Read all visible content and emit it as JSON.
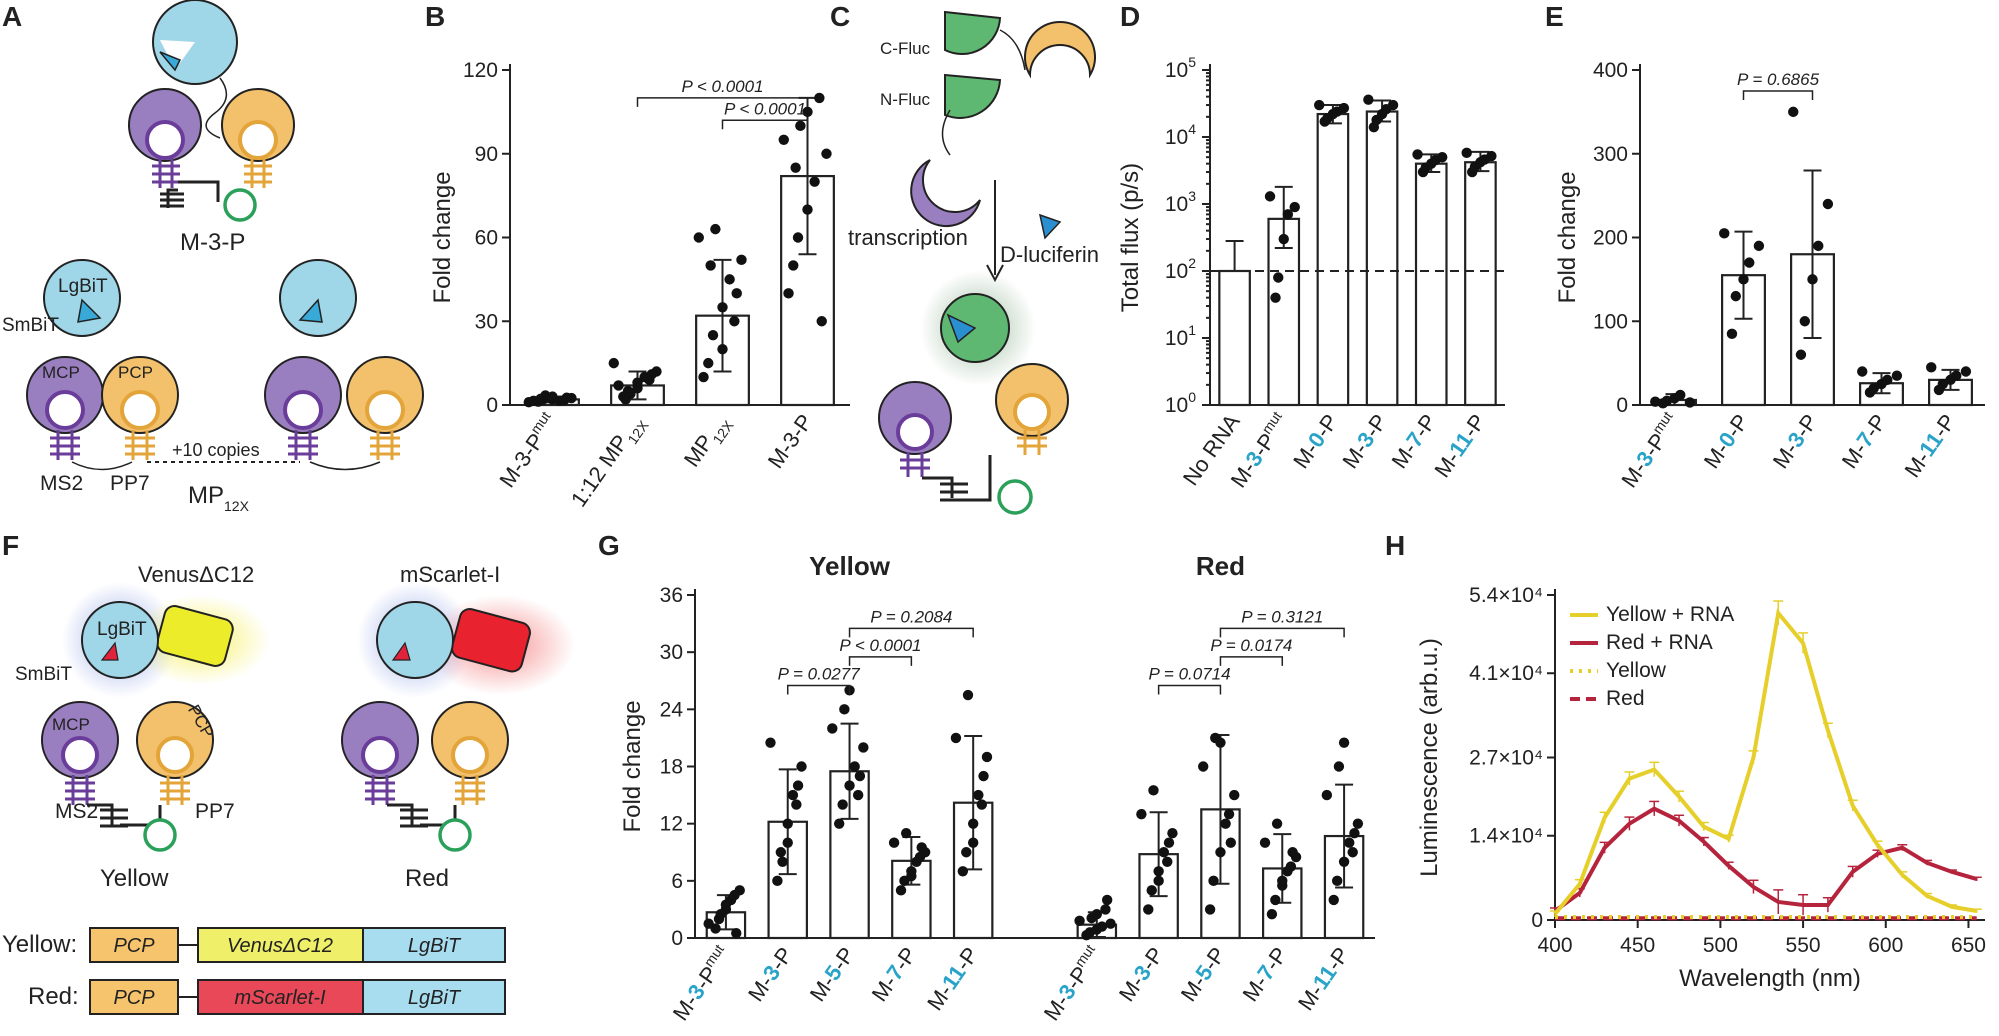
{
  "panels": {
    "A": {
      "label": "A",
      "construct_top": "M-3-P",
      "lgbit": "LgBiT",
      "smbit": "SmBiT",
      "mcp": "MCP",
      "pcp": "PCP",
      "ms2": "MS2",
      "pp7": "PP7",
      "copies": "+10 copies",
      "mp_main": "MP",
      "mp_sub": "12X"
    },
    "C": {
      "label": "C",
      "cfluc": "C-Fluc",
      "nfluc": "N-Fluc",
      "transcription": "transcription",
      "luciferin": "D-luciferin"
    },
    "F": {
      "label": "F",
      "venus_title": "VenusΔC12",
      "scarlet_title": "mScarlet-I",
      "lgbit": "LgBiT",
      "smbit": "SmBiT",
      "mcp": "MCP",
      "pcp": "PCP",
      "ms2": "MS2",
      "pp7": "PP7",
      "yellow_name": "Yellow",
      "red_name": "Red",
      "fusion_yellow": {
        "row_label": "Yellow:",
        "segments": [
          "PCP",
          "VenusΔC12",
          "LgBiT"
        ]
      },
      "fusion_red": {
        "row_label": "Red:",
        "segments": [
          "PCP",
          "mScarlet-I",
          "LgBiT"
        ]
      }
    }
  },
  "chart_data": [
    {
      "panel": "B",
      "type": "bar",
      "ylabel": "Fold change",
      "ylim": [
        0,
        120
      ],
      "yticks": [
        0,
        30,
        60,
        90,
        120
      ],
      "categories": [
        {
          "parts": [
            [
              "M-3-P",
              ""
            ],
            [
              "mut",
              "sup"
            ]
          ]
        },
        {
          "parts": [
            [
              "1:12 MP",
              ""
            ],
            [
              "12X",
              "sub"
            ]
          ]
        },
        {
          "parts": [
            [
              "MP",
              ""
            ],
            [
              "12X",
              "sub"
            ]
          ]
        },
        {
          "parts": [
            [
              "M-3-P",
              ""
            ]
          ]
        }
      ],
      "values": [
        2,
        7,
        32,
        82
      ],
      "sd": [
        1,
        5,
        20,
        28
      ],
      "points": [
        [
          1.2,
          2,
          3,
          1.5,
          2.5,
          1,
          3.4,
          2,
          1.8,
          2.6,
          1.5,
          2.2
        ],
        [
          3,
          5,
          8,
          10,
          12,
          15,
          4,
          6,
          9,
          11,
          7,
          2
        ],
        [
          15,
          25,
          35,
          45,
          52,
          60,
          63,
          20,
          30,
          40,
          10,
          50
        ],
        [
          50,
          60,
          70,
          80,
          90,
          95,
          100,
          105,
          110,
          30,
          40,
          85
        ]
      ],
      "annotations": [
        {
          "text": "P < 0.0001",
          "from": 1,
          "to": 3,
          "level": 110
        },
        {
          "text": "P < 0.0001",
          "from": 2,
          "to": 3,
          "level": 102
        }
      ]
    },
    {
      "panel": "D",
      "type": "bar",
      "yscale": "log",
      "ylabel": "Total flux (p/s)",
      "ylim": [
        1,
        100000
      ],
      "yticks": [
        {
          "base": "10",
          "exp": "0"
        },
        {
          "base": "10",
          "exp": "1"
        },
        {
          "base": "10",
          "exp": "2"
        },
        {
          "base": "10",
          "exp": "3"
        },
        {
          "base": "10",
          "exp": "4"
        },
        {
          "base": "10",
          "exp": "5"
        }
      ],
      "reference_line": 100,
      "categories": [
        {
          "parts": [
            [
              "No RNA",
              ""
            ]
          ]
        },
        {
          "parts": [
            [
              "M-",
              ""
            ],
            [
              "3",
              "hl"
            ],
            [
              "-P",
              ""
            ],
            [
              "mut",
              "sup"
            ]
          ]
        },
        {
          "parts": [
            [
              "M-",
              ""
            ],
            [
              "0",
              "hl"
            ],
            [
              "-P",
              ""
            ]
          ]
        },
        {
          "parts": [
            [
              "M-",
              ""
            ],
            [
              "3",
              "hl"
            ],
            [
              "-P",
              ""
            ]
          ]
        },
        {
          "parts": [
            [
              "M-",
              ""
            ],
            [
              "7",
              "hl"
            ],
            [
              "-P",
              ""
            ]
          ]
        },
        {
          "parts": [
            [
              "M-",
              ""
            ],
            [
              "11",
              "hl"
            ],
            [
              "-P",
              ""
            ]
          ]
        }
      ],
      "values": [
        100,
        600,
        22000,
        24000,
        4000,
        4200
      ],
      "err_low": [
        100,
        220,
        16000,
        17000,
        3000,
        3100
      ],
      "err_high": [
        280,
        1800,
        30000,
        35000,
        5500,
        6000
      ],
      "points": [
        [],
        [
          40,
          80,
          300,
          700,
          900,
          1300
        ],
        [
          17000,
          19000,
          22000,
          24000,
          27000,
          30000
        ],
        [
          14000,
          18000,
          22000,
          26000,
          30000,
          36000
        ],
        [
          3000,
          3500,
          4000,
          4500,
          5000,
          5500
        ],
        [
          3000,
          3600,
          4200,
          4600,
          5200,
          5800
        ]
      ]
    },
    {
      "panel": "E",
      "type": "bar",
      "ylabel": "Fold change",
      "ylim": [
        0,
        400
      ],
      "yticks": [
        0,
        100,
        200,
        300,
        400
      ],
      "categories": [
        {
          "parts": [
            [
              "M-",
              ""
            ],
            [
              "3",
              "hl"
            ],
            [
              "-P",
              ""
            ],
            [
              "mut",
              "sup"
            ]
          ]
        },
        {
          "parts": [
            [
              "M-",
              ""
            ],
            [
              "0",
              "hl"
            ],
            [
              "-P",
              ""
            ]
          ]
        },
        {
          "parts": [
            [
              "M-",
              ""
            ],
            [
              "3",
              "hl"
            ],
            [
              "-P",
              ""
            ]
          ]
        },
        {
          "parts": [
            [
              "M-",
              ""
            ],
            [
              "7",
              "hl"
            ],
            [
              "-P",
              ""
            ]
          ]
        },
        {
          "parts": [
            [
              "M-",
              ""
            ],
            [
              "11",
              "hl"
            ],
            [
              "-P",
              ""
            ]
          ]
        }
      ],
      "values": [
        6,
        155,
        180,
        26,
        30
      ],
      "sd": [
        7,
        52,
        100,
        12,
        12
      ],
      "points": [
        [
          2,
          5,
          8,
          12,
          3,
          4
        ],
        [
          85,
          130,
          150,
          170,
          190,
          205
        ],
        [
          60,
          100,
          150,
          190,
          240,
          350
        ],
        [
          15,
          20,
          25,
          30,
          35,
          40
        ],
        [
          18,
          25,
          30,
          35,
          40,
          45
        ]
      ],
      "annotations": [
        {
          "text": "P = 0.6865",
          "from": 1,
          "to": 2,
          "level": 375
        }
      ]
    },
    {
      "panel": "G",
      "type": "bar",
      "ylabel": "Fold change",
      "ylim": [
        0,
        36
      ],
      "yticks": [
        0,
        6,
        12,
        18,
        24,
        30,
        36
      ],
      "groups": [
        {
          "name": "Yellow",
          "color": "#e8d31c"
        },
        {
          "name": "Red",
          "color": "#b5243c"
        }
      ],
      "categories": [
        {
          "parts": [
            [
              "M-",
              ""
            ],
            [
              "3",
              "hl"
            ],
            [
              "-P",
              ""
            ],
            [
              "mut",
              "sup"
            ]
          ]
        },
        {
          "parts": [
            [
              "M-",
              ""
            ],
            [
              "3",
              "hl"
            ],
            [
              "-P",
              ""
            ]
          ]
        },
        {
          "parts": [
            [
              "M-",
              ""
            ],
            [
              "5",
              "hl"
            ],
            [
              "-P",
              ""
            ]
          ]
        },
        {
          "parts": [
            [
              "M-",
              ""
            ],
            [
              "7",
              "hl"
            ],
            [
              "-P",
              ""
            ]
          ]
        },
        {
          "parts": [
            [
              "M-",
              ""
            ],
            [
              "11",
              "hl"
            ],
            [
              "-P",
              ""
            ]
          ]
        },
        {
          "parts": [
            [
              "M-",
              ""
            ],
            [
              "3",
              "hl"
            ],
            [
              "-P",
              ""
            ],
            [
              "mut",
              "sup"
            ]
          ]
        },
        {
          "parts": [
            [
              "M-",
              ""
            ],
            [
              "3",
              "hl"
            ],
            [
              "-P",
              ""
            ]
          ]
        },
        {
          "parts": [
            [
              "M-",
              ""
            ],
            [
              "5",
              "hl"
            ],
            [
              "-P",
              ""
            ]
          ]
        },
        {
          "parts": [
            [
              "M-",
              ""
            ],
            [
              "7",
              "hl"
            ],
            [
              "-P",
              ""
            ]
          ]
        },
        {
          "parts": [
            [
              "M-",
              ""
            ],
            [
              "11",
              "hl"
            ],
            [
              "-P",
              ""
            ]
          ]
        }
      ],
      "values": [
        2.7,
        12.2,
        17.5,
        8.1,
        14.2,
        1.4,
        8.8,
        13.5,
        7.3,
        10.7
      ],
      "sd": [
        1.8,
        5.5,
        5.0,
        2.5,
        7.0,
        1.3,
        4.4,
        7.8,
        3.6,
        5.4
      ],
      "points": [
        [
          1,
          2,
          3,
          4,
          5,
          1.5,
          2.5,
          3.5,
          4.5,
          0.5
        ],
        [
          6,
          9,
          12,
          15,
          18,
          20.5,
          8,
          10,
          14,
          16
        ],
        [
          12,
          14,
          16,
          18,
          20,
          22,
          24,
          26,
          15,
          17
        ],
        [
          5,
          6,
          7,
          8,
          9,
          10,
          11,
          6.5,
          8.5,
          9.5
        ],
        [
          7,
          9,
          12,
          15,
          19,
          21,
          25.5,
          10,
          14,
          17
        ],
        [
          0.3,
          0.6,
          0.9,
          1.2,
          1.5,
          1.8,
          2.1,
          2.5,
          3,
          4
        ],
        [
          3,
          5,
          7,
          9,
          11,
          13,
          15.5,
          6,
          8,
          10
        ],
        [
          3,
          6,
          9,
          12,
          15,
          18,
          21,
          20.5,
          13,
          10
        ],
        [
          2.5,
          4,
          5.5,
          7,
          8.5,
          10,
          12,
          6,
          7.5,
          9
        ],
        [
          4,
          6,
          8,
          10,
          12,
          15,
          18,
          20.5,
          9,
          11
        ]
      ],
      "annotations": [
        {
          "text": "P = 0.0277",
          "from": 1,
          "to": 2,
          "level": 26.5
        },
        {
          "text": "P < 0.0001",
          "from": 2,
          "to": 3,
          "level": 29.5
        },
        {
          "text": "P = 0.2084",
          "from": 2,
          "to": 4,
          "level": 32.5
        },
        {
          "text": "P = 0.0714",
          "from": 6,
          "to": 7,
          "level": 26.5
        },
        {
          "text": "P = 0.0174",
          "from": 7,
          "to": 8,
          "level": 29.5
        },
        {
          "text": "P = 0.3121",
          "from": 7,
          "to": 9,
          "level": 32.5
        }
      ]
    },
    {
      "panel": "H",
      "type": "line",
      "xlabel": "Wavelength (nm)",
      "ylabel": "Luminescence (arb.u.)",
      "xlim": [
        400,
        660
      ],
      "xticks": [
        400,
        450,
        500,
        550,
        600,
        650
      ],
      "ylim": [
        0,
        54000
      ],
      "yticks": [
        {
          "v": 0,
          "label": "0"
        },
        {
          "v": 14000,
          "label": "1.4×10⁴"
        },
        {
          "v": 27000,
          "label": "2.7×10⁴"
        },
        {
          "v": 41000,
          "label": "4.1×10⁴"
        },
        {
          "v": 54000,
          "label": "5.4×10⁴"
        }
      ],
      "x": [
        400,
        415,
        430,
        445,
        460,
        475,
        490,
        505,
        520,
        535,
        550,
        565,
        580,
        595,
        610,
        625,
        640,
        655
      ],
      "series": [
        {
          "name": "Yellow + RNA",
          "color": "#e6cf2a",
          "style": "solid",
          "values": [
            1000,
            6000,
            17000,
            23500,
            25000,
            20500,
            15500,
            13500,
            27000,
            51000,
            46000,
            31500,
            19000,
            12500,
            7500,
            4000,
            2200,
            1500
          ]
        },
        {
          "name": "Red + RNA",
          "color": "#b5243c",
          "style": "solid",
          "values": [
            1500,
            4500,
            12000,
            16000,
            18500,
            16500,
            13000,
            9000,
            5500,
            3000,
            2500,
            2500,
            8000,
            11000,
            12000,
            9500,
            8000,
            6800
          ]
        },
        {
          "name": "Yellow",
          "color": "#e6cf2a",
          "style": "dotted",
          "values": [
            500,
            500,
            500,
            500,
            500,
            500,
            500,
            500,
            500,
            500,
            500,
            500,
            500,
            500,
            500,
            500,
            500,
            500
          ]
        },
        {
          "name": "Red",
          "color": "#b5243c",
          "style": "dashed",
          "values": [
            300,
            300,
            300,
            300,
            300,
            300,
            300,
            300,
            300,
            300,
            300,
            300,
            300,
            300,
            300,
            300,
            300,
            300
          ]
        }
      ],
      "err": [
        500,
        700,
        900,
        1100,
        1200,
        900,
        700,
        600,
        1100,
        2000,
        1700,
        1200,
        900,
        600,
        500,
        400,
        300,
        300
      ],
      "legend_position": "top-left"
    }
  ]
}
